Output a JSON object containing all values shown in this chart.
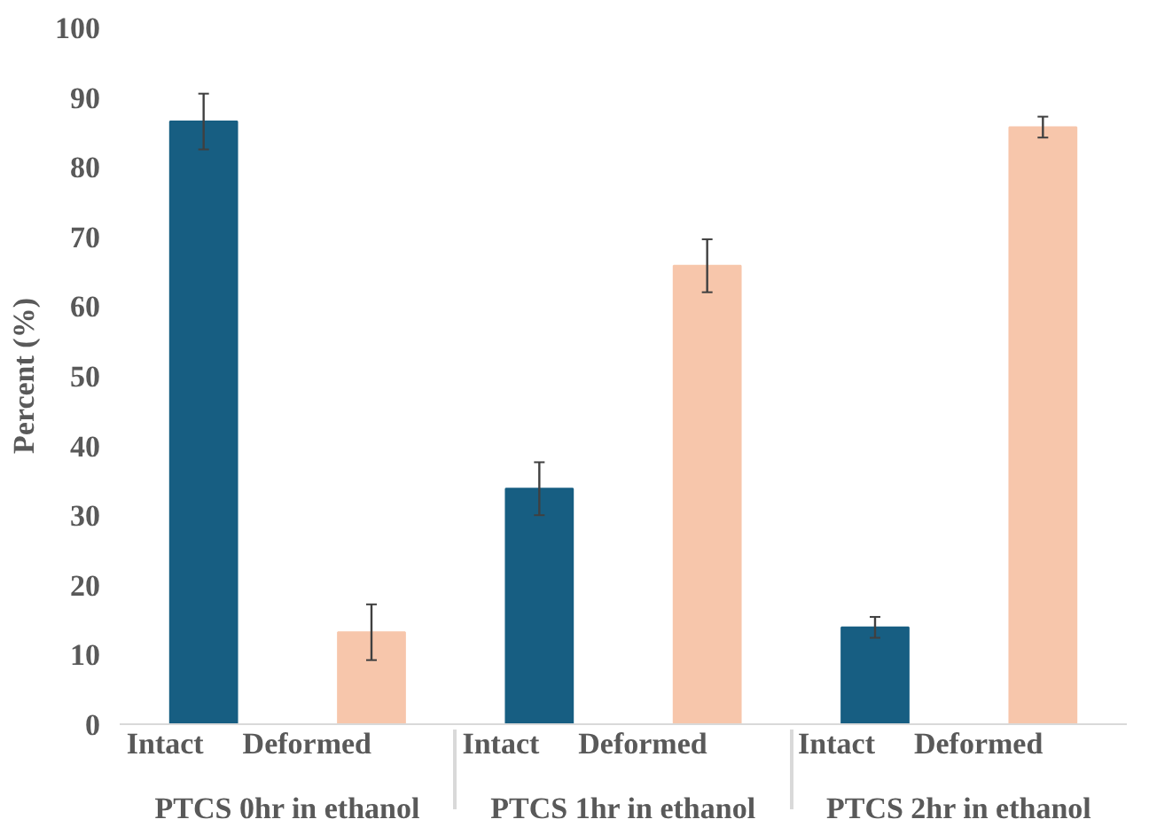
{
  "chart_data": {
    "type": "bar",
    "ylabel": "Percent (%)",
    "categories": [
      "Intact",
      "Deformed",
      "Intact",
      "Deformed",
      "Intact",
      "Deformed"
    ],
    "values": [
      86.5,
      13.2,
      33.8,
      65.8,
      13.9,
      85.7
    ],
    "errors": [
      4,
      4,
      3.8,
      3.8,
      1.5,
      1.5
    ],
    "colors": [
      "#175e82",
      "#f7c6ab",
      "#175e82",
      "#f7c6ab",
      "#175e82",
      "#f7c6ab"
    ],
    "annotations": [
      "PTCS 0hr in ethanol",
      "PTCS 1hr in ethanol",
      "PTCS 2hr in ethanol"
    ],
    "ylim": [
      0,
      100
    ],
    "yticks": [
      0,
      10,
      20,
      30,
      40,
      50,
      60,
      70,
      80,
      90,
      100
    ],
    "grid": false
  }
}
